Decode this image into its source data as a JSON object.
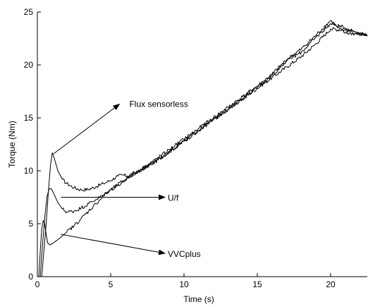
{
  "chart_data": {
    "type": "line",
    "title": "",
    "xlabel": "Time (s)",
    "ylabel": "Torque (Nm)",
    "xlim": [
      0,
      22.5
    ],
    "ylim": [
      0,
      25
    ],
    "x_ticks": [
      0,
      5,
      10,
      15,
      20
    ],
    "y_ticks": [
      0,
      5,
      10,
      15,
      20,
      25
    ],
    "grid": false,
    "colors": {
      "line": "#000000",
      "axis": "#000000",
      "background": "#ffffff"
    },
    "series": [
      {
        "points": [
          [
            0.3,
            0
          ],
          [
            0.45,
            2.5
          ],
          [
            0.6,
            5
          ],
          [
            0.75,
            8
          ],
          [
            0.9,
            10.6
          ],
          [
            1.02,
            11.7
          ],
          [
            1.15,
            11.2
          ],
          [
            1.4,
            10.0
          ],
          [
            1.7,
            9.2
          ],
          [
            2.0,
            8.8
          ],
          [
            2.5,
            8.4
          ],
          [
            3.0,
            8.2
          ],
          [
            3.5,
            8.25
          ],
          [
            4.0,
            8.5
          ],
          [
            4.5,
            8.8
          ],
          [
            5.0,
            9.1
          ],
          [
            5.5,
            9.5
          ],
          [
            5.85,
            9.6
          ],
          [
            6.1,
            9.5
          ],
          [
            7,
            10.0
          ],
          [
            8,
            10.8
          ],
          [
            9,
            11.8
          ],
          [
            10,
            12.8
          ],
          [
            11,
            13.8
          ],
          [
            12,
            14.8
          ],
          [
            13,
            15.8
          ],
          [
            14,
            16.8
          ],
          [
            15,
            17.8
          ],
          [
            16,
            18.8
          ],
          [
            17,
            19.8
          ],
          [
            18,
            20.8
          ],
          [
            19,
            22.0
          ],
          [
            20,
            23.4
          ],
          [
            21,
            23.3
          ],
          [
            22,
            22.9
          ],
          [
            22.5,
            22.7
          ]
        ]
      },
      {
        "points": [
          [
            0.2,
            0
          ],
          [
            0.35,
            3.0
          ],
          [
            0.5,
            5.5
          ],
          [
            0.65,
            7.5
          ],
          [
            0.8,
            8.3
          ],
          [
            0.95,
            8.3
          ],
          [
            1.1,
            7.9
          ],
          [
            1.4,
            7.0
          ],
          [
            1.7,
            6.4
          ],
          [
            2.0,
            6.1
          ],
          [
            2.5,
            6.2
          ],
          [
            3.0,
            6.5
          ],
          [
            3.5,
            6.9
          ],
          [
            4.0,
            7.3
          ],
          [
            4.5,
            7.7
          ],
          [
            5.0,
            8.2
          ],
          [
            6,
            9.1
          ],
          [
            7,
            10.0
          ],
          [
            8,
            10.9
          ],
          [
            9,
            11.8
          ],
          [
            10,
            12.8
          ],
          [
            11,
            13.8
          ],
          [
            12,
            14.8
          ],
          [
            13,
            15.8
          ],
          [
            14,
            16.8
          ],
          [
            15,
            17.9
          ],
          [
            16,
            19.0
          ],
          [
            17,
            20.4
          ],
          [
            18,
            21.2
          ],
          [
            19,
            22.6
          ],
          [
            20,
            23.9
          ],
          [
            21,
            23.5
          ],
          [
            22,
            23.0
          ],
          [
            22.5,
            22.8
          ]
        ]
      },
      {
        "points": [
          [
            0.1,
            0
          ],
          [
            0.2,
            2.5
          ],
          [
            0.3,
            4.5
          ],
          [
            0.4,
            5.3
          ],
          [
            0.5,
            5.0
          ],
          [
            0.6,
            4.0
          ],
          [
            0.7,
            3.2
          ],
          [
            0.85,
            3.0
          ],
          [
            1.0,
            3.1
          ],
          [
            1.5,
            3.6
          ],
          [
            2.0,
            4.2
          ],
          [
            2.5,
            4.8
          ],
          [
            3.0,
            5.5
          ],
          [
            3.5,
            6.2
          ],
          [
            4.0,
            6.9
          ],
          [
            4.5,
            7.6
          ],
          [
            5.0,
            8.2
          ],
          [
            6,
            9.2
          ],
          [
            7,
            10.1
          ],
          [
            8,
            11.0
          ],
          [
            9,
            12.0
          ],
          [
            10,
            13.0
          ],
          [
            11,
            14.0
          ],
          [
            12,
            15.0
          ],
          [
            13,
            16.0
          ],
          [
            14,
            17.0
          ],
          [
            15,
            18.0
          ],
          [
            16,
            19.1
          ],
          [
            17,
            20.5
          ],
          [
            18,
            21.5
          ],
          [
            19,
            22.8
          ],
          [
            20,
            24.2
          ],
          [
            20.5,
            23.5
          ],
          [
            21,
            23.0
          ],
          [
            22,
            22.9
          ],
          [
            22.5,
            22.8
          ]
        ]
      }
    ],
    "annotations": [
      {
        "text": "Flux sensorless",
        "from": [
          1.1,
          11.6
        ],
        "to": [
          5.6,
          16.3
        ]
      },
      {
        "text": "U/f",
        "from": [
          1.6,
          7.5
        ],
        "to": [
          8.7,
          7.5
        ]
      },
      {
        "text": "VVCplus",
        "from": [
          1.6,
          4.0
        ],
        "to": [
          8.7,
          2.2
        ]
      }
    ]
  }
}
